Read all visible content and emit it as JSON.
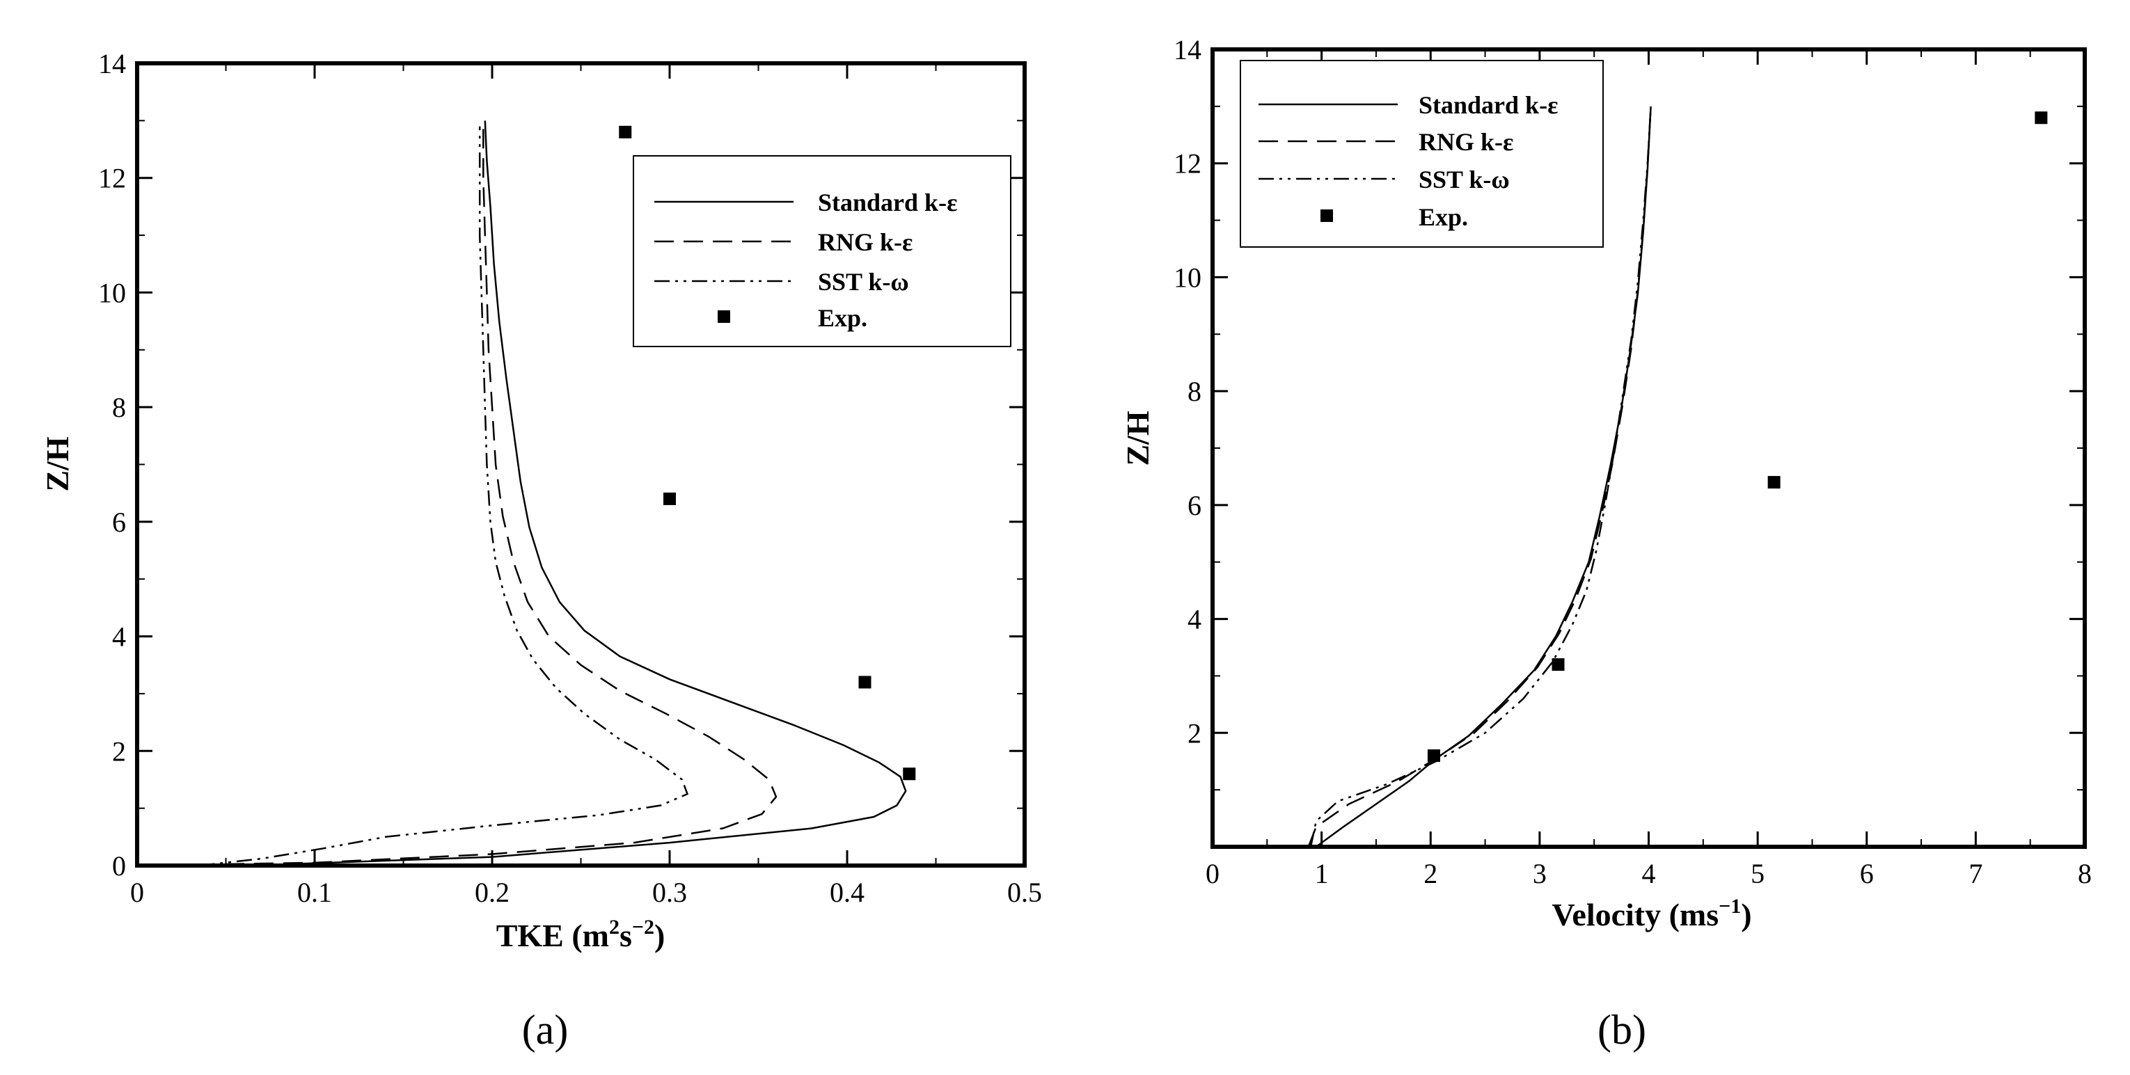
{
  "chart_data": [
    {
      "type": "line",
      "panel_label": "(a)",
      "xlabel_main": "TKE (m",
      "xlabel_sup1": "2",
      "xlabel_mid": "s",
      "xlabel_sup2": "−2",
      "xlabel_end": ")",
      "ylabel": "Z/H",
      "xlim": [
        0,
        0.5
      ],
      "ylim": [
        0,
        14
      ],
      "xticks": [
        "0",
        "0.1",
        "0.2",
        "0.3",
        "0.4",
        "0.5"
      ],
      "yticks": [
        "0",
        "2",
        "4",
        "6",
        "8",
        "10",
        "12",
        "14"
      ],
      "grid": false,
      "legend_position": "upper-right",
      "series": [
        {
          "name": "Standard k-ε",
          "style": "solid",
          "points": [
            [
              0.0,
              0
            ],
            [
              0.08,
              0.02
            ],
            [
              0.2,
              0.15
            ],
            [
              0.3,
              0.4
            ],
            [
              0.38,
              0.65
            ],
            [
              0.415,
              0.85
            ],
            [
              0.428,
              1.05
            ],
            [
              0.433,
              1.3
            ],
            [
              0.43,
              1.55
            ],
            [
              0.418,
              1.8
            ],
            [
              0.398,
              2.1
            ],
            [
              0.37,
              2.45
            ],
            [
              0.335,
              2.85
            ],
            [
              0.3,
              3.25
            ],
            [
              0.272,
              3.65
            ],
            [
              0.252,
              4.1
            ],
            [
              0.238,
              4.6
            ],
            [
              0.228,
              5.2
            ],
            [
              0.221,
              5.9
            ],
            [
              0.216,
              6.7
            ],
            [
              0.212,
              7.6
            ],
            [
              0.208,
              8.5
            ],
            [
              0.204,
              9.5
            ],
            [
              0.201,
              10.5
            ],
            [
              0.199,
              11.5
            ],
            [
              0.197,
              12.3
            ],
            [
              0.196,
              13.0
            ]
          ]
        },
        {
          "name": "RNG k-ε",
          "style": "dashed",
          "points": [
            [
              0.0,
              0
            ],
            [
              0.1,
              0.05
            ],
            [
              0.2,
              0.2
            ],
            [
              0.28,
              0.4
            ],
            [
              0.33,
              0.65
            ],
            [
              0.352,
              0.9
            ],
            [
              0.36,
              1.2
            ],
            [
              0.356,
              1.5
            ],
            [
              0.342,
              1.85
            ],
            [
              0.322,
              2.25
            ],
            [
              0.298,
              2.65
            ],
            [
              0.272,
              3.05
            ],
            [
              0.25,
              3.5
            ],
            [
              0.232,
              4.0
            ],
            [
              0.22,
              4.6
            ],
            [
              0.212,
              5.3
            ],
            [
              0.206,
              6.1
            ],
            [
              0.202,
              7.0
            ],
            [
              0.2,
              8.0
            ],
            [
              0.198,
              9.0
            ],
            [
              0.197,
              10.0
            ],
            [
              0.196,
              11.0
            ],
            [
              0.195,
              12.0
            ],
            [
              0.195,
              13.0
            ]
          ]
        },
        {
          "name": "SST k-ω",
          "style": "dashdotdot",
          "points": [
            [
              0.035,
              0
            ],
            [
              0.07,
              0.12
            ],
            [
              0.105,
              0.3
            ],
            [
              0.14,
              0.5
            ],
            [
              0.2,
              0.7
            ],
            [
              0.26,
              0.88
            ],
            [
              0.295,
              1.05
            ],
            [
              0.31,
              1.25
            ],
            [
              0.307,
              1.5
            ],
            [
              0.292,
              1.85
            ],
            [
              0.272,
              2.2
            ],
            [
              0.252,
              2.65
            ],
            [
              0.236,
              3.1
            ],
            [
              0.223,
              3.6
            ],
            [
              0.214,
              4.1
            ],
            [
              0.207,
              4.7
            ],
            [
              0.202,
              5.3
            ],
            [
              0.199,
              6.0
            ],
            [
              0.197,
              7.0
            ],
            [
              0.196,
              8.0
            ],
            [
              0.195,
              9.0
            ],
            [
              0.194,
              10.0
            ],
            [
              0.193,
              11.0
            ],
            [
              0.193,
              12.0
            ],
            [
              0.193,
              12.9
            ]
          ]
        },
        {
          "name": "Exp.",
          "style": "square-marker",
          "points": [
            [
              0.435,
              1.6
            ],
            [
              0.41,
              3.2
            ],
            [
              0.3,
              6.4
            ],
            [
              0.275,
              12.8
            ]
          ]
        }
      ]
    },
    {
      "type": "line",
      "panel_label": "(b)",
      "xlabel_main": "Velocity (ms",
      "xlabel_sup": "−1",
      "xlabel_end": ")",
      "ylabel": "Z/H",
      "xlim": [
        0,
        8
      ],
      "ylim": [
        0,
        14
      ],
      "xticks": [
        "0",
        "1",
        "2",
        "3",
        "4",
        "5",
        "6",
        "7",
        "8"
      ],
      "yticks": [
        "2",
        "4",
        "6",
        "8",
        "10",
        "12",
        "14"
      ],
      "grid": false,
      "legend_position": "upper-left",
      "series": [
        {
          "name": "Standard k-ε",
          "style": "solid",
          "points": [
            [
              0.95,
              0
            ],
            [
              1.2,
              0.35
            ],
            [
              1.5,
              0.75
            ],
            [
              1.8,
              1.15
            ],
            [
              2.05,
              1.55
            ],
            [
              2.35,
              1.95
            ],
            [
              2.65,
              2.5
            ],
            [
              2.95,
              3.1
            ],
            [
              3.15,
              3.7
            ],
            [
              3.3,
              4.3
            ],
            [
              3.45,
              5.0
            ],
            [
              3.55,
              5.8
            ],
            [
              3.65,
              6.7
            ],
            [
              3.75,
              7.7
            ],
            [
              3.83,
              8.7
            ],
            [
              3.9,
              9.7
            ],
            [
              3.95,
              10.8
            ],
            [
              3.99,
              11.9
            ],
            [
              4.02,
              13.0
            ]
          ]
        },
        {
          "name": "RNG k-ε",
          "style": "dashed",
          "points": [
            [
              0.88,
              0
            ],
            [
              0.95,
              0.35
            ],
            [
              1.25,
              0.75
            ],
            [
              1.7,
              1.15
            ],
            [
              2.05,
              1.55
            ],
            [
              2.4,
              2.0
            ],
            [
              2.7,
              2.55
            ],
            [
              2.98,
              3.15
            ],
            [
              3.18,
              3.75
            ],
            [
              3.33,
              4.35
            ],
            [
              3.47,
              5.05
            ],
            [
              3.57,
              5.85
            ],
            [
              3.67,
              6.75
            ],
            [
              3.76,
              7.75
            ],
            [
              3.84,
              8.75
            ],
            [
              3.9,
              9.75
            ],
            [
              3.95,
              10.85
            ],
            [
              3.99,
              11.95
            ],
            [
              4.02,
              13.0
            ]
          ]
        },
        {
          "name": "SST k-ω",
          "style": "dashdotdot",
          "points": [
            [
              0.9,
              0
            ],
            [
              0.95,
              0.45
            ],
            [
              1.15,
              0.8
            ],
            [
              1.6,
              1.1
            ],
            [
              2.05,
              1.5
            ],
            [
              2.5,
              2.0
            ],
            [
              2.85,
              2.6
            ],
            [
              3.12,
              3.25
            ],
            [
              3.3,
              3.9
            ],
            [
              3.43,
              4.5
            ],
            [
              3.52,
              5.2
            ],
            [
              3.6,
              6.0
            ],
            [
              3.68,
              6.9
            ],
            [
              3.76,
              7.9
            ],
            [
              3.84,
              8.9
            ],
            [
              3.9,
              9.9
            ],
            [
              3.95,
              11.0
            ],
            [
              3.99,
              12.0
            ],
            [
              4.02,
              13.0
            ]
          ]
        },
        {
          "name": "Exp.",
          "style": "square-marker",
          "points": [
            [
              2.03,
              1.6
            ],
            [
              3.17,
              3.2
            ],
            [
              5.15,
              6.4
            ],
            [
              7.6,
              12.8
            ]
          ]
        }
      ]
    }
  ]
}
